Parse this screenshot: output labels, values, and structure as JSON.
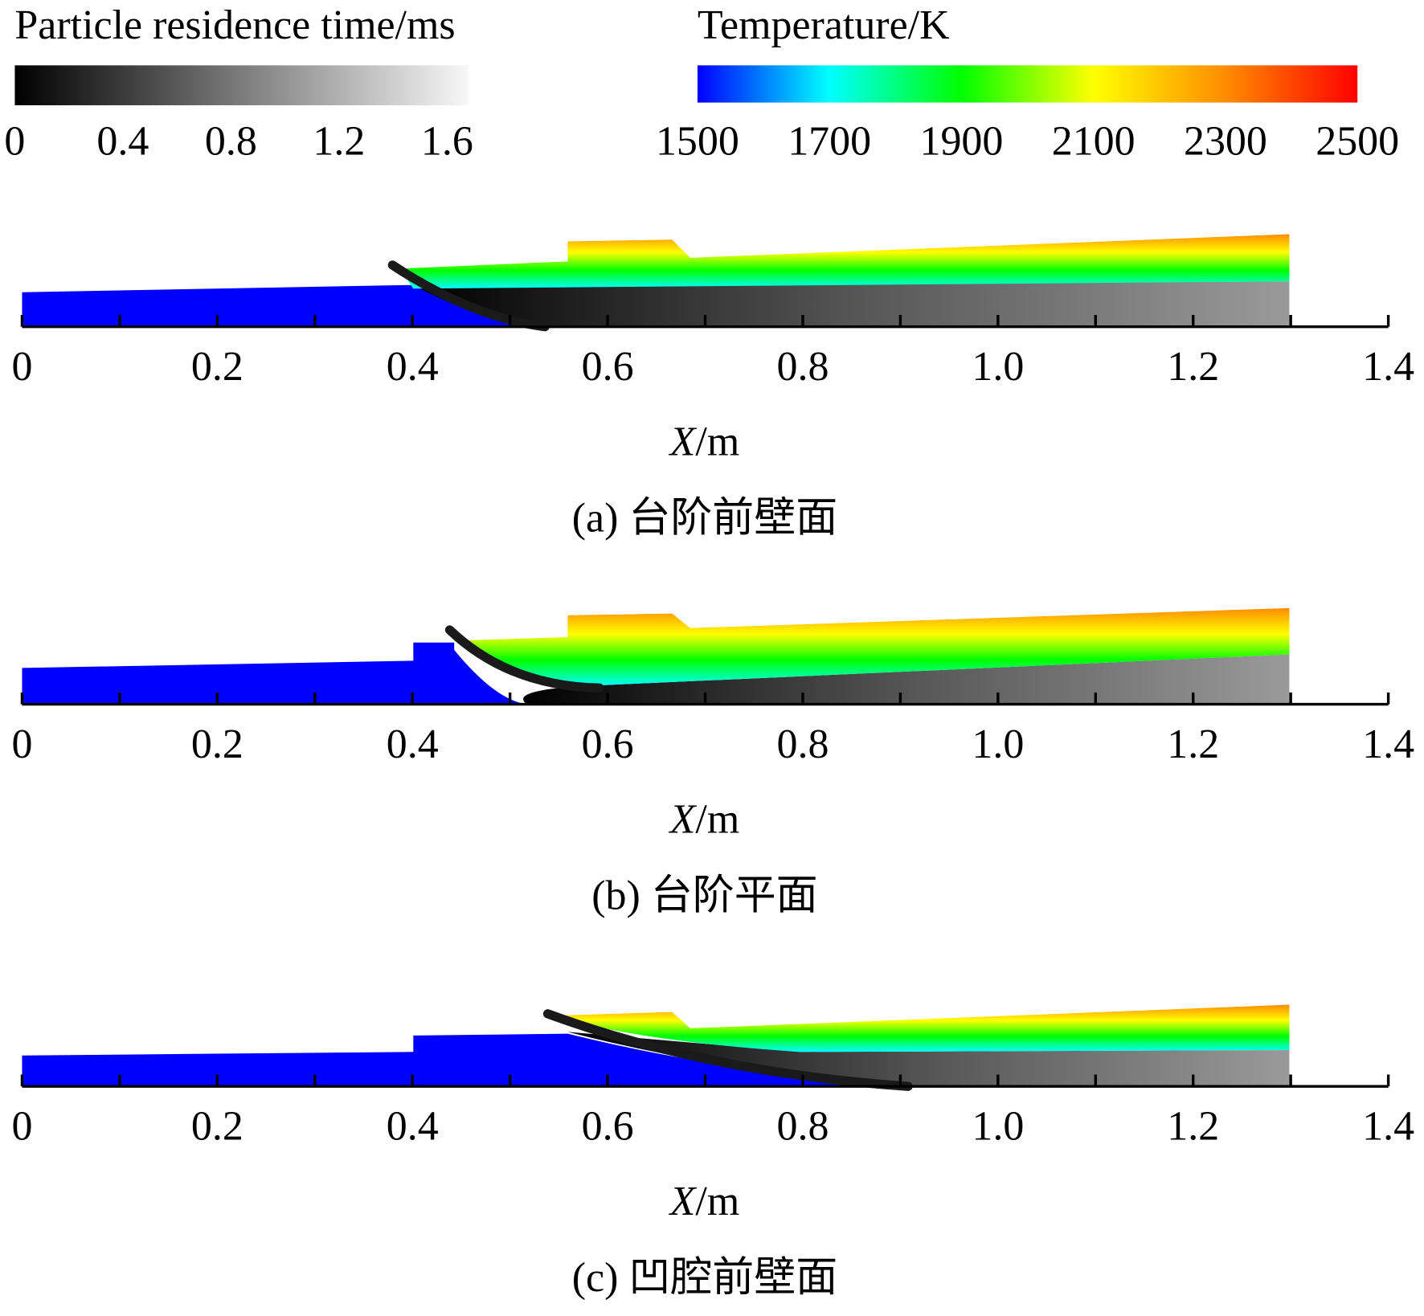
{
  "colorbars": [
    {
      "title": "Particle residence time/ms",
      "lim": [
        0,
        1.68
      ],
      "ticks": [
        0,
        0.4,
        0.8,
        1.2,
        1.6
      ],
      "colors": [
        "#000000",
        "#f8f8f8"
      ]
    },
    {
      "title": "Temperature/K",
      "lim": [
        1500,
        2500
      ],
      "ticks": [
        1500,
        1700,
        1900,
        2100,
        2300,
        2500
      ],
      "colors": [
        "#0000ff",
        "#00ffff",
        "#00ff00",
        "#ffff00",
        "#ff8c00",
        "#ff0000"
      ]
    }
  ],
  "panels": [
    {
      "caption": "(a) 台阶前壁面",
      "xlabel_var": "X",
      "xlabel_unit": "/m",
      "xlim": [
        0,
        1.4
      ],
      "xticks": [
        0,
        0.2,
        0.4,
        0.6,
        0.8,
        {
          "value": 1,
          "label": "1.0"
        },
        1.2,
        1.4
      ],
      "minor_xticks": [
        0.1,
        0.3,
        0.5,
        0.7,
        0.9,
        1.1,
        1.3
      ]
    },
    {
      "caption": "(b) 台阶平面",
      "xlabel_var": "X",
      "xlabel_unit": "/m",
      "xlim": [
        0,
        1.4
      ],
      "xticks": [
        0,
        0.2,
        0.4,
        0.6,
        0.8,
        {
          "value": 1,
          "label": "1.0"
        },
        1.2,
        1.4
      ],
      "minor_xticks": [
        0.1,
        0.3,
        0.5,
        0.7,
        0.9,
        1.1,
        1.3
      ]
    },
    {
      "caption": "(c) 凹腔前壁面",
      "xlabel_var": "X",
      "xlabel_unit": "/m",
      "xlim": [
        0,
        1.4
      ],
      "xticks": [
        0,
        0.2,
        0.4,
        0.6,
        0.8,
        {
          "value": 1,
          "label": "1.0"
        },
        1.2,
        1.4
      ],
      "minor_xticks": [
        0.1,
        0.3,
        0.5,
        0.7,
        0.9,
        1.1,
        1.3
      ]
    }
  ]
}
